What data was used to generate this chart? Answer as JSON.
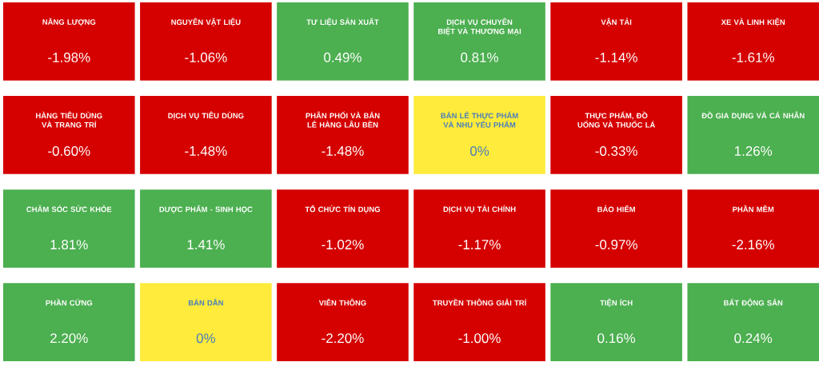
{
  "chart_data": {
    "type": "other",
    "categories": [
      "NĂNG LƯỢNG",
      "NGUYÊN VẬT LIỆU",
      "TƯ LIỆU SẢN XUẤT",
      "DỊCH VỤ CHUYÊN BIỆT VÀ THƯƠNG MẠI",
      "VẬN TẢI",
      "XE VÀ LINH KIỆN",
      "HÀNG TIÊU DÙNG VÀ TRANG TRÍ",
      "DỊCH VỤ TIÊU DÙNG",
      "PHÂN PHỐI VÀ BÁN LẺ HÀNG LÂU BỀN",
      "BÁN LẺ THỰC PHẨM VÀ NHU YẾU PHẨM",
      "THỰC PHẨM, ĐỒ UỐNG VÀ THUỐC LÁ",
      "ĐỒ GIA DỤNG VÀ CÁ NHÂN",
      "CHĂM SÓC SỨC KHỎE",
      "DƯỢC PHẨM - SINH HỌC",
      "TỔ CHỨC TÍN DỤNG",
      "DỊCH VỤ TÀI CHÍNH",
      "BẢO HIỂM",
      "PHẦN MỀM",
      "PHẦN CỨNG",
      "BÁN DẪN",
      "VIỄN THÔNG",
      "TRUYỀN THÔNG GIẢI TRÍ",
      "TIỆN ÍCH",
      "BẤT ĐỘNG SẢN"
    ],
    "values": [
      -1.98,
      -1.06,
      0.49,
      0.81,
      -1.14,
      -1.61,
      -0.6,
      -1.48,
      -1.48,
      0,
      -0.33,
      1.26,
      1.81,
      1.41,
      -1.02,
      -1.17,
      -0.97,
      -2.16,
      2.2,
      0,
      -2.2,
      -1.0,
      0.16,
      0.24
    ],
    "value_labels": [
      "-1.98%",
      "-1.06%",
      "0.49%",
      "0.81%",
      "-1.14%",
      "-1.61%",
      "-0.60%",
      "-1.48%",
      "-1.48%",
      "0%",
      "-0.33%",
      "1.26%",
      "1.81%",
      "1.41%",
      "-1.02%",
      "-1.17%",
      "-0.97%",
      "-2.16%",
      "2.20%",
      "0%",
      "-2.20%",
      "-1.00%",
      "0.16%",
      "0.24%"
    ]
  }
}
